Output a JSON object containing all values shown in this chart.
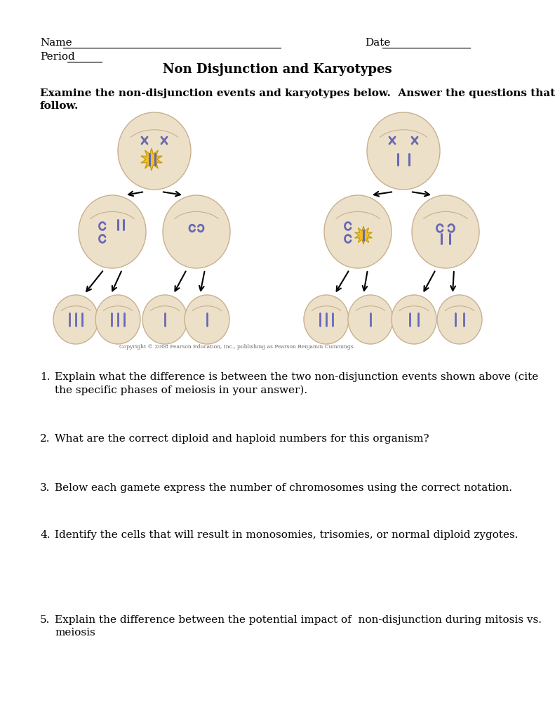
{
  "bg_color": "#ffffff",
  "title": "Non Disjunction and Karyotypes",
  "name_label": "Name",
  "date_label": "Date",
  "period_label": "Period",
  "intro_text": "Examine the non-disjunction events and karyotypes below.  Answer the questions that\nfollow.",
  "copyright_text": "Copyright © 2008 Pearson Education, Inc., publishing as Pearson Benjamin Cummings.",
  "cell_color": "#ede0c8",
  "cell_edge_color": "#c8b090",
  "chrom_color": "#6868b8",
  "star_color": "#f0c020",
  "arrow_color": "#000000",
  "q1": "Explain what the difference is between the two non-disjunction events shown above (cite\nthe specific phases of meiosis in your answer).",
  "q2": "What are the correct diploid and haploid numbers for this organism?",
  "q3": "Below each gamete express the number of chromosomes using the correct notation.",
  "q4": "Identify the cells that will result in monosomies, trisomies, or normal diploid zygotes.",
  "q5": "Explain the difference between the potential impact of  non-disjunction during mitosis vs.\nmeiosis"
}
